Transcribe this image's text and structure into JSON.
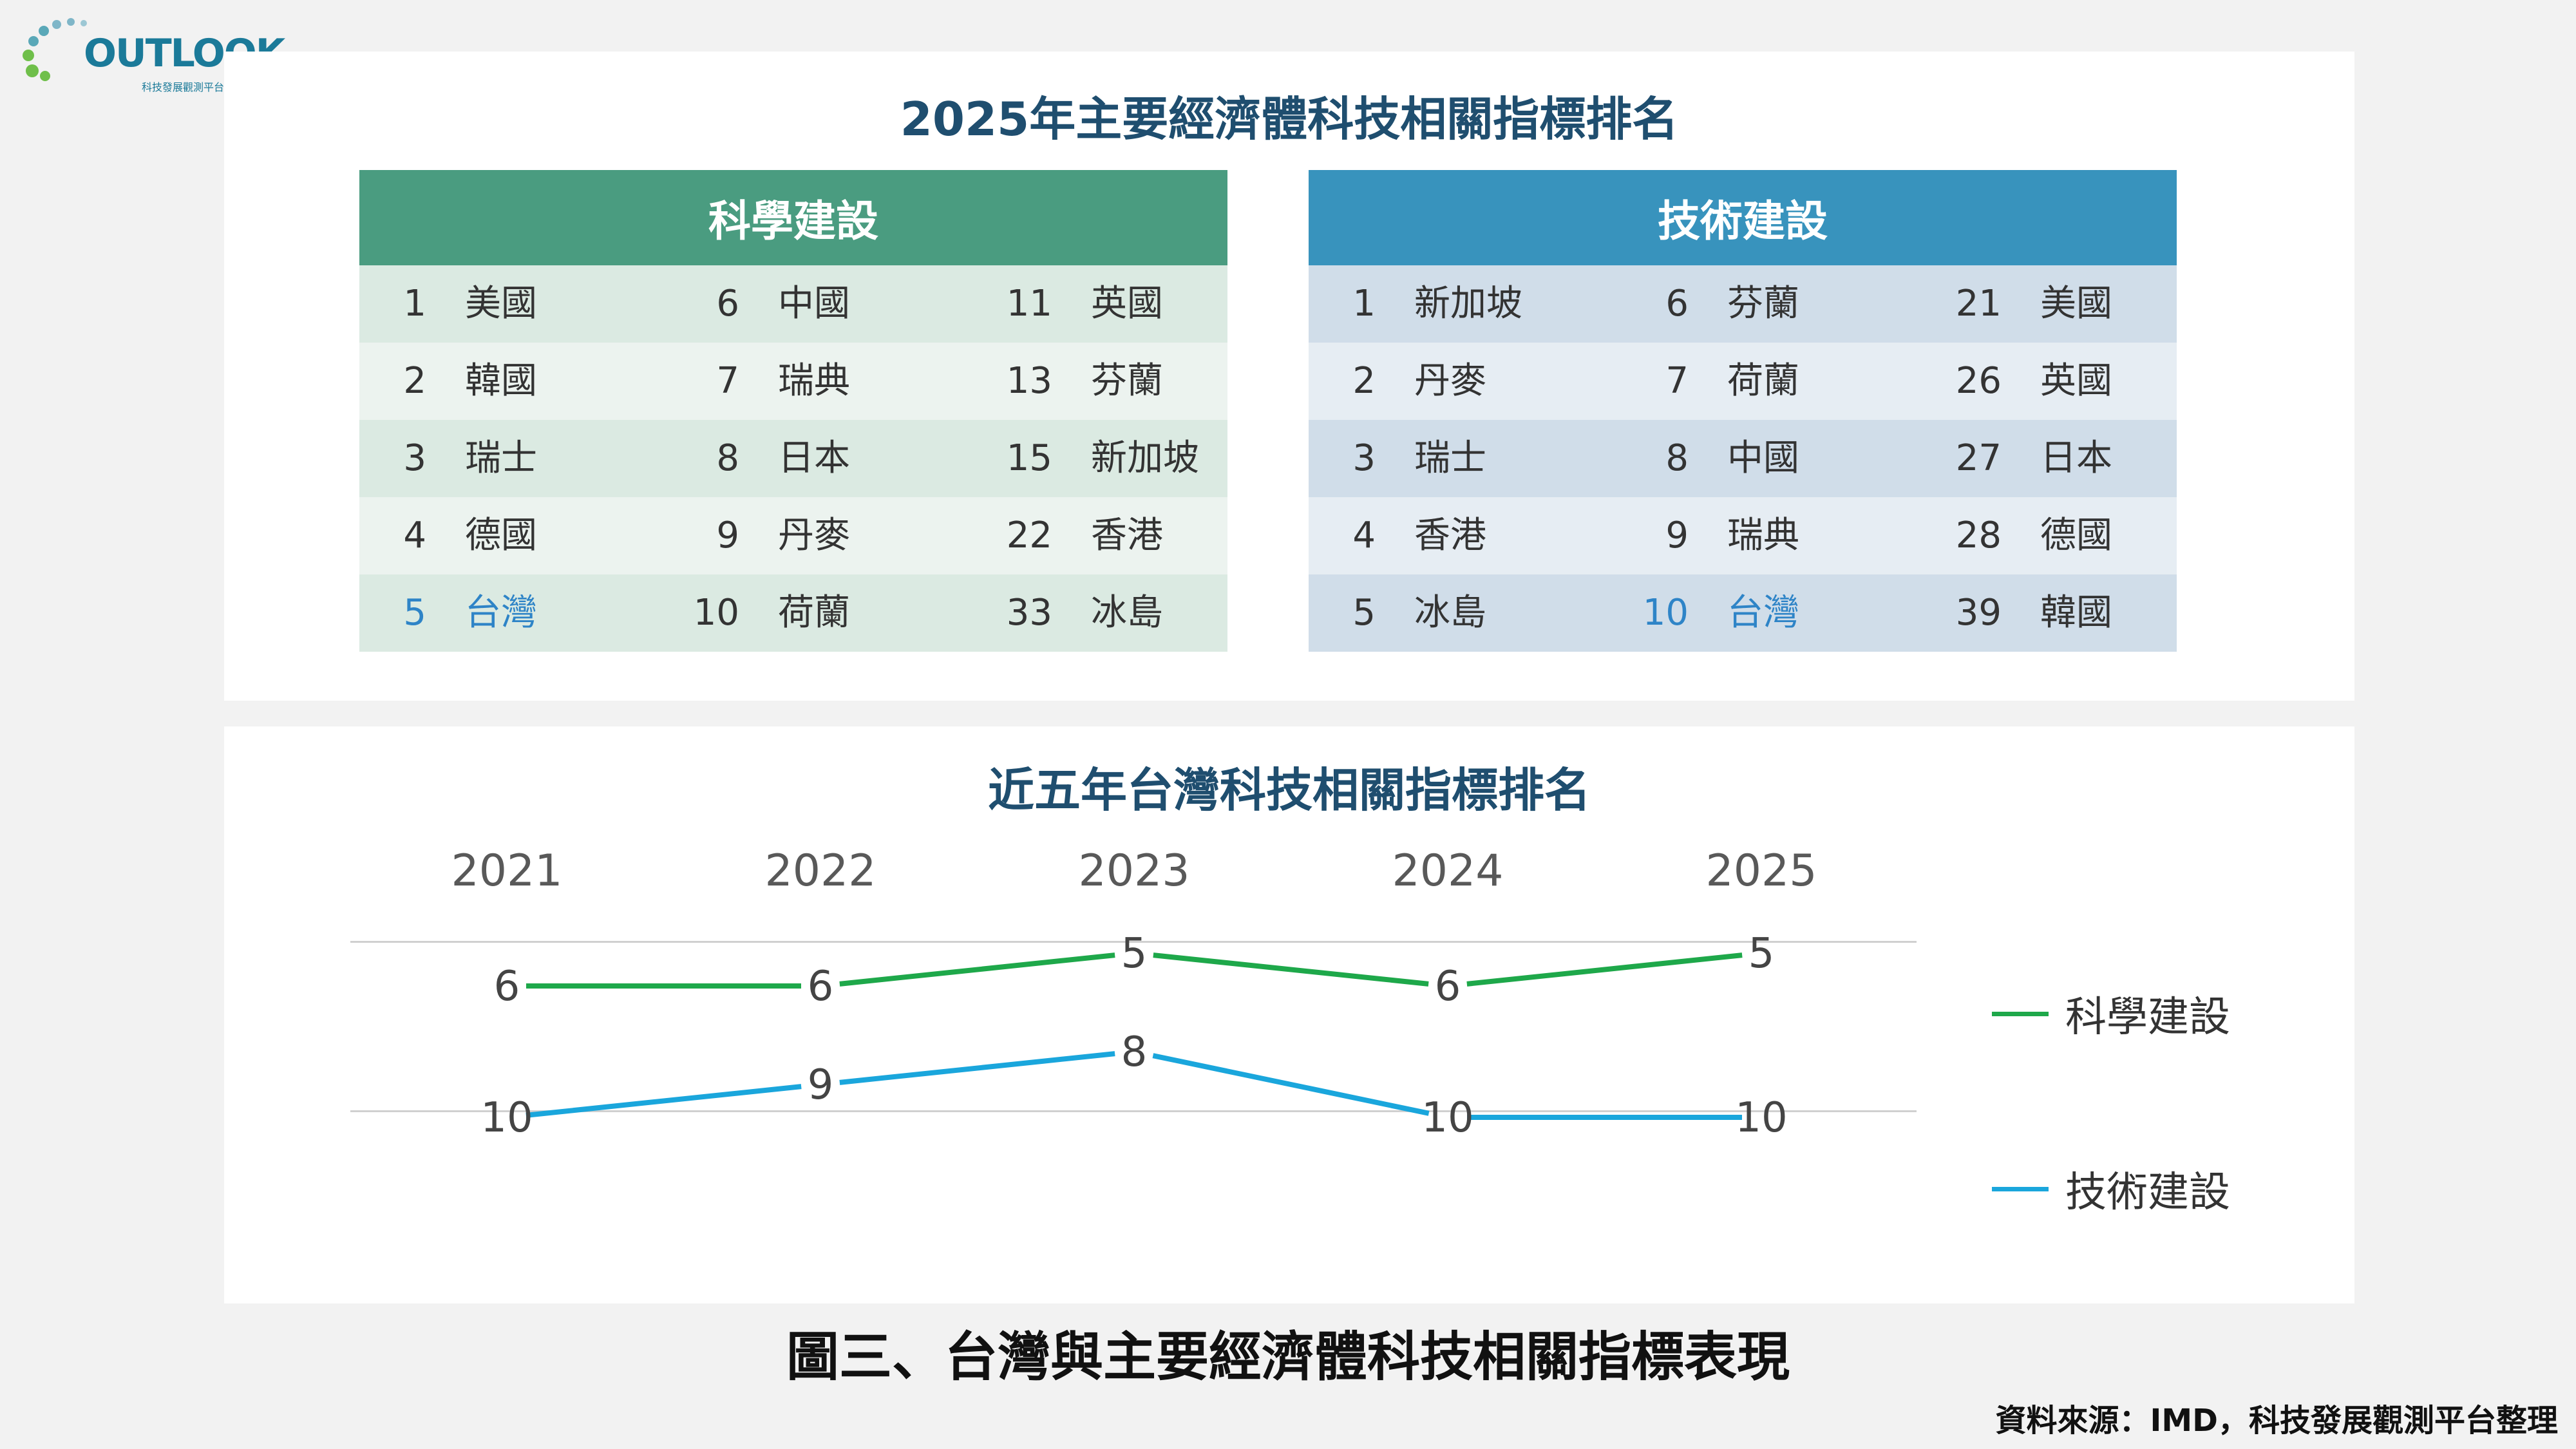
{
  "logo": {
    "word": "OUTLOOK",
    "subtitle": "科技發展觀測平台"
  },
  "top_panel": {
    "title": "2025年主要經濟體科技相關指標排名",
    "science": {
      "header": "科學建設",
      "rows": [
        [
          {
            "rank": "1",
            "name": "美國"
          },
          {
            "rank": "6",
            "name": "中國"
          },
          {
            "rank": "11",
            "name": "英國"
          }
        ],
        [
          {
            "rank": "2",
            "name": "韓國"
          },
          {
            "rank": "7",
            "name": "瑞典"
          },
          {
            "rank": "13",
            "name": "芬蘭"
          }
        ],
        [
          {
            "rank": "3",
            "name": "瑞士"
          },
          {
            "rank": "8",
            "name": "日本"
          },
          {
            "rank": "15",
            "name": "新加坡"
          }
        ],
        [
          {
            "rank": "4",
            "name": "德國"
          },
          {
            "rank": "9",
            "name": "丹麥"
          },
          {
            "rank": "22",
            "name": "香港"
          }
        ],
        [
          {
            "rank": "5",
            "name": "台灣",
            "highlight": true
          },
          {
            "rank": "10",
            "name": "荷蘭"
          },
          {
            "rank": "33",
            "name": "冰島"
          }
        ]
      ]
    },
    "technology": {
      "header": "技術建設",
      "rows": [
        [
          {
            "rank": "1",
            "name": "新加坡"
          },
          {
            "rank": "6",
            "name": "芬蘭"
          },
          {
            "rank": "21",
            "name": "美國"
          }
        ],
        [
          {
            "rank": "2",
            "name": "丹麥"
          },
          {
            "rank": "7",
            "name": "荷蘭"
          },
          {
            "rank": "26",
            "name": "英國"
          }
        ],
        [
          {
            "rank": "3",
            "name": "瑞士"
          },
          {
            "rank": "8",
            "name": "中國"
          },
          {
            "rank": "27",
            "name": "日本"
          }
        ],
        [
          {
            "rank": "4",
            "name": "香港"
          },
          {
            "rank": "9",
            "name": "瑞典"
          },
          {
            "rank": "28",
            "name": "德國"
          }
        ],
        [
          {
            "rank": "5",
            "name": "冰島"
          },
          {
            "rank": "10",
            "name": "台灣",
            "highlight": true
          },
          {
            "rank": "39",
            "name": "韓國"
          }
        ]
      ]
    }
  },
  "chart_data": {
    "type": "line",
    "title": "近五年台灣科技相關指標排名",
    "x": [
      "2021",
      "2022",
      "2023",
      "2024",
      "2025"
    ],
    "y_inverted": true,
    "series": [
      {
        "name": "科學建設",
        "color": "#1ea84a",
        "values": [
          6,
          6,
          5,
          6,
          5
        ]
      },
      {
        "name": "技術建設",
        "color": "#1aa6dc",
        "values": [
          10,
          9,
          8,
          10,
          10
        ]
      }
    ],
    "legend_position": "right"
  },
  "caption": "圖三、台灣與主要經濟體科技相關指標表現",
  "source": "資料來源：IMD，科技發展觀測平台整理"
}
